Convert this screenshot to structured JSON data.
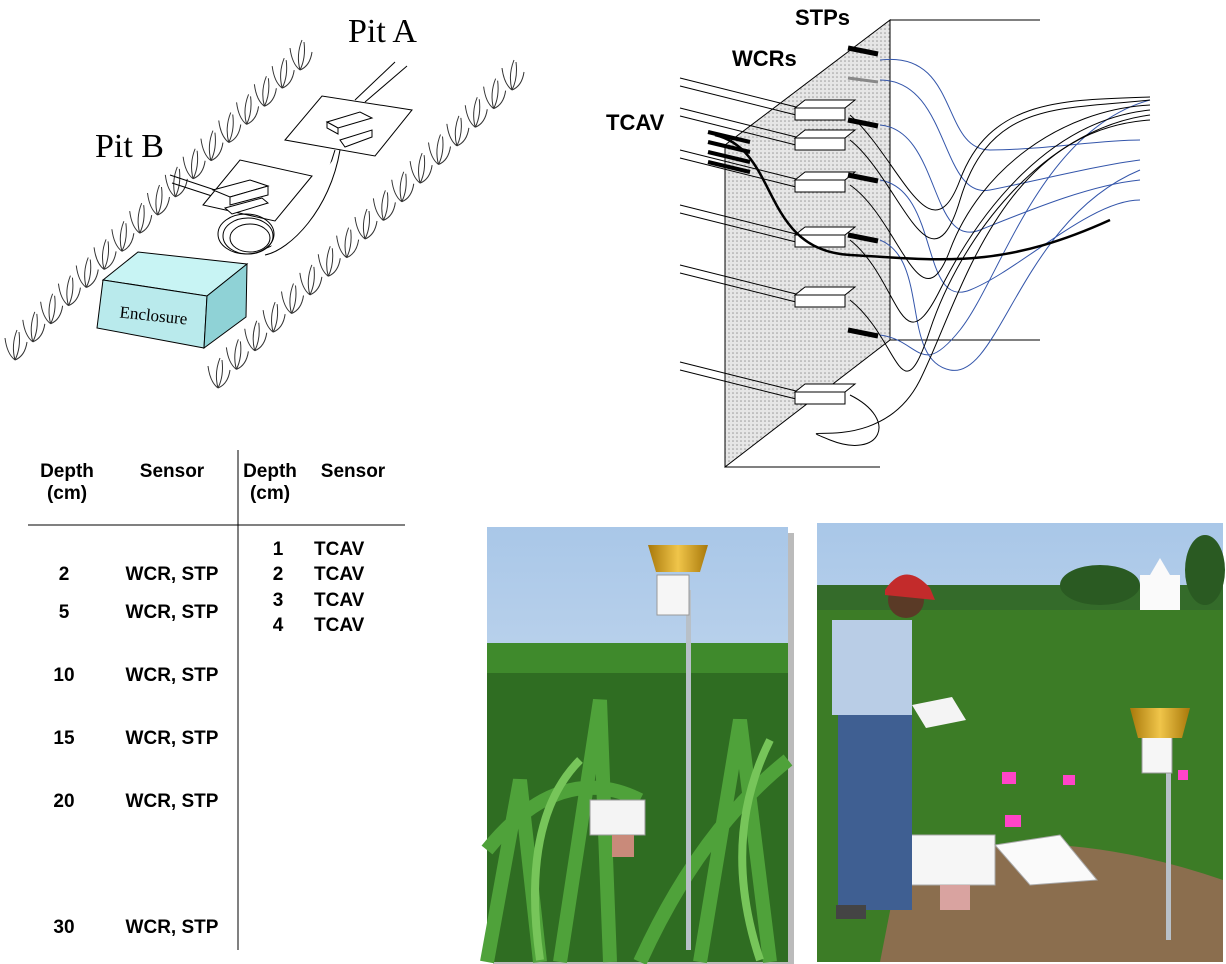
{
  "diagram": {
    "pit_a": "Pit A",
    "pit_b": "Pit B",
    "enclosure": "Enclosure",
    "stps": "STPs",
    "wcrs": "WCRs",
    "tcav": "TCAV"
  },
  "table": {
    "headers": [
      "Depth (cm)",
      "Sensor",
      "Depth (cm)",
      "Sensor"
    ],
    "left_rows": [
      [
        2,
        "WCR, STP"
      ],
      [
        5,
        "WCR, STP"
      ],
      [
        10,
        "WCR, STP"
      ],
      [
        15,
        "WCR, STP"
      ],
      [
        20,
        "WCR, STP"
      ],
      [
        30,
        "WCR, STP"
      ]
    ],
    "right_rows": [
      [
        1,
        "TCAV"
      ],
      [
        2,
        "TCAV"
      ],
      [
        3,
        "TCAV"
      ],
      [
        4,
        "TCAV"
      ]
    ]
  }
}
